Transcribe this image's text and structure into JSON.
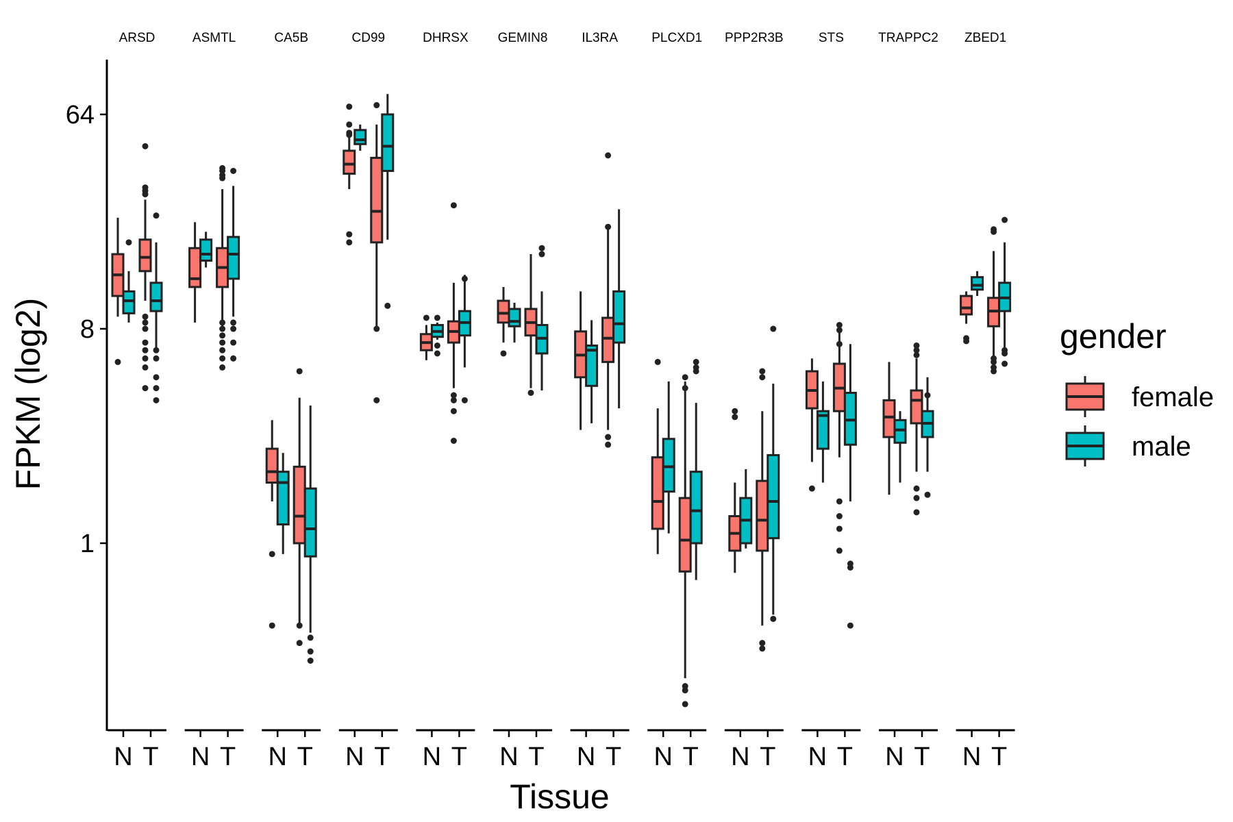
{
  "chart_data": {
    "type": "box",
    "facets": [
      "ARSD",
      "ASMTL",
      "CA5B",
      "CD99",
      "DHRSX",
      "GEMIN8",
      "IL3RA",
      "PLCXD1",
      "PPP2R3B",
      "STS",
      "TRAPPC2",
      "ZBED1"
    ],
    "x_categories": [
      "N",
      "T"
    ],
    "xlabel": "Tissue",
    "ylabel": "FPKM (log2)",
    "y_scale": "log2",
    "y_ticks": [
      1,
      8,
      64
    ],
    "y_tick_labels": [
      "1",
      "8",
      "64"
    ],
    "ylim": [
      0.12,
      100
    ],
    "legend": {
      "title": "gender",
      "position": "right",
      "entries": [
        {
          "name": "female",
          "color": "#F8766D"
        },
        {
          "name": "male",
          "color": "#00BFC4"
        }
      ]
    },
    "series": [
      {
        "name": "female",
        "color": "#F8766D"
      },
      {
        "name": "male",
        "color": "#00BFC4"
      }
    ],
    "boxes": [
      {
        "gene": "ARSD",
        "tissue": "N",
        "gender": "female",
        "min": 9.0,
        "q1": 11.0,
        "median": 13.5,
        "q3": 16.5,
        "max": 23.5,
        "outliers": [
          5.8
        ]
      },
      {
        "gene": "ARSD",
        "tissue": "N",
        "gender": "male",
        "min": 8.5,
        "q1": 9.3,
        "median": 10.5,
        "q3": 11.5,
        "max": 14.0,
        "outliers": [
          18.5
        ]
      },
      {
        "gene": "ARSD",
        "tissue": "T",
        "gender": "female",
        "min": 10.5,
        "q1": 14.0,
        "median": 16.0,
        "q3": 19.0,
        "max": 28.0,
        "outliers": [
          47.0,
          31.5,
          30.5,
          29.5,
          9.0,
          8.5,
          8.0,
          7.0,
          6.5,
          6.0,
          5.5,
          4.5
        ]
      },
      {
        "gene": "ARSD",
        "tissue": "T",
        "gender": "male",
        "min": 6.5,
        "q1": 9.5,
        "median": 10.5,
        "q3": 12.5,
        "max": 18.5,
        "outliers": [
          24.0,
          6.5,
          6.0,
          5.0,
          4.5,
          4.0
        ]
      },
      {
        "gene": "ASMTL",
        "tissue": "N",
        "gender": "female",
        "min": 8.5,
        "q1": 12.0,
        "median": 13.0,
        "q3": 17.5,
        "max": 22.5,
        "outliers": []
      },
      {
        "gene": "ASMTL",
        "tissue": "N",
        "gender": "male",
        "min": 14.5,
        "q1": 15.5,
        "median": 16.5,
        "q3": 19.0,
        "max": 20.5,
        "outliers": []
      },
      {
        "gene": "ASMTL",
        "tissue": "T",
        "gender": "female",
        "min": 8.0,
        "q1": 12.0,
        "median": 14.5,
        "q3": 17.5,
        "max": 31.0,
        "outliers": [
          38.0,
          37.0,
          35.5,
          34.5,
          8.5,
          8.0,
          7.5,
          7.0,
          6.5,
          6.0,
          5.5
        ]
      },
      {
        "gene": "ASMTL",
        "tissue": "T",
        "gender": "male",
        "min": 9.0,
        "q1": 13.0,
        "median": 16.5,
        "q3": 19.5,
        "max": 32.0,
        "outliers": [
          37.0,
          8.5,
          8.0,
          7.0,
          6.0
        ]
      },
      {
        "gene": "CA5B",
        "tissue": "N",
        "gender": "female",
        "min": 1.5,
        "q1": 1.8,
        "median": 2.0,
        "q3": 2.5,
        "max": 3.3,
        "outliers": [
          0.9,
          0.45
        ]
      },
      {
        "gene": "CA5B",
        "tissue": "N",
        "gender": "male",
        "min": 0.9,
        "q1": 1.2,
        "median": 1.8,
        "q3": 2.0,
        "max": 2.4,
        "outliers": []
      },
      {
        "gene": "CA5B",
        "tissue": "T",
        "gender": "female",
        "min": 0.45,
        "q1": 1.0,
        "median": 1.3,
        "q3": 2.1,
        "max": 4.1,
        "outliers": [
          5.3,
          0.45,
          0.38
        ]
      },
      {
        "gene": "CA5B",
        "tissue": "T",
        "gender": "male",
        "min": 0.42,
        "q1": 0.88,
        "median": 1.15,
        "q3": 1.7,
        "max": 3.8,
        "outliers": [
          0.4,
          0.35,
          0.32
        ]
      },
      {
        "gene": "CD99",
        "tissue": "N",
        "gender": "female",
        "min": 31.0,
        "q1": 36.0,
        "median": 39.5,
        "q3": 45.0,
        "max": 52.0,
        "outliers": [
          69.0,
          58.0,
          53.5,
          52.5,
          20.0,
          18.5
        ]
      },
      {
        "gene": "CD99",
        "tissue": "N",
        "gender": "male",
        "min": 45.0,
        "q1": 48.0,
        "median": 50.0,
        "q3": 55.0,
        "max": 58.0,
        "outliers": []
      },
      {
        "gene": "CD99",
        "tissue": "T",
        "gender": "female",
        "min": 8.0,
        "q1": 18.5,
        "median": 25.0,
        "q3": 42.0,
        "max": 58.0,
        "outliers": [
          70.0,
          8.0,
          4.0
        ]
      },
      {
        "gene": "CD99",
        "tissue": "T",
        "gender": "male",
        "min": 19.0,
        "q1": 37.0,
        "median": 47.0,
        "q3": 64.0,
        "max": 78.0,
        "outliers": [
          10.0
        ]
      },
      {
        "gene": "DHRSX",
        "tissue": "N",
        "gender": "female",
        "min": 5.9,
        "q1": 6.5,
        "median": 7.0,
        "q3": 7.6,
        "max": 8.3,
        "outliers": [
          8.9
        ]
      },
      {
        "gene": "DHRSX",
        "tissue": "N",
        "gender": "male",
        "min": 7.2,
        "q1": 7.4,
        "median": 7.8,
        "q3": 8.3,
        "max": 8.5,
        "outliers": [
          8.9,
          6.8,
          6.3
        ]
      },
      {
        "gene": "DHRSX",
        "tissue": "T",
        "gender": "female",
        "min": 4.5,
        "q1": 7.0,
        "median": 7.8,
        "q3": 8.6,
        "max": 12.5,
        "outliers": [
          26.5,
          4.2,
          4.0,
          3.6,
          2.7
        ]
      },
      {
        "gene": "DHRSX",
        "tissue": "T",
        "gender": "male",
        "min": 5.5,
        "q1": 7.5,
        "median": 8.5,
        "q3": 9.5,
        "max": 13.5,
        "outliers": [
          13.0,
          4.0
        ]
      },
      {
        "gene": "GEMIN8",
        "tissue": "N",
        "gender": "female",
        "min": 7.0,
        "q1": 8.5,
        "median": 9.3,
        "q3": 10.5,
        "max": 12.0,
        "outliers": [
          6.3
        ]
      },
      {
        "gene": "GEMIN8",
        "tissue": "N",
        "gender": "male",
        "min": 7.0,
        "q1": 8.2,
        "median": 8.6,
        "q3": 9.7,
        "max": 10.3,
        "outliers": []
      },
      {
        "gene": "GEMIN8",
        "tissue": "T",
        "gender": "female",
        "min": 4.5,
        "q1": 7.5,
        "median": 8.5,
        "q3": 9.7,
        "max": 16.5,
        "outliers": [
          4.3
        ]
      },
      {
        "gene": "GEMIN8",
        "tissue": "T",
        "gender": "male",
        "min": 4.4,
        "q1": 6.3,
        "median": 7.3,
        "q3": 8.3,
        "max": 11.5,
        "outliers": [
          17.5,
          16.5
        ]
      },
      {
        "gene": "IL3RA",
        "tissue": "N",
        "gender": "female",
        "min": 3.0,
        "q1": 5.0,
        "median": 6.2,
        "q3": 7.8,
        "max": 11.5,
        "outliers": []
      },
      {
        "gene": "IL3RA",
        "tissue": "N",
        "gender": "male",
        "min": 3.2,
        "q1": 4.6,
        "median": 6.5,
        "q3": 6.8,
        "max": 8.7,
        "outliers": []
      },
      {
        "gene": "IL3RA",
        "tissue": "T",
        "gender": "female",
        "min": 3.0,
        "q1": 5.8,
        "median": 7.3,
        "q3": 8.9,
        "max": 21.0,
        "outliers": [
          43.0,
          21.5,
          2.8,
          2.6
        ]
      },
      {
        "gene": "IL3RA",
        "tissue": "T",
        "gender": "male",
        "min": 3.7,
        "q1": 7.0,
        "median": 8.4,
        "q3": 11.5,
        "max": 25.5,
        "outliers": []
      },
      {
        "gene": "PLCXD1",
        "tissue": "N",
        "gender": "female",
        "min": 0.9,
        "q1": 1.15,
        "median": 1.5,
        "q3": 2.3,
        "max": 3.7,
        "outliers": [
          5.8
        ]
      },
      {
        "gene": "PLCXD1",
        "tissue": "N",
        "gender": "male",
        "min": 1.1,
        "q1": 1.65,
        "median": 2.1,
        "q3": 2.75,
        "max": 4.8,
        "outliers": []
      },
      {
        "gene": "PLCXD1",
        "tissue": "T",
        "gender": "female",
        "min": 0.27,
        "q1": 0.76,
        "median": 1.03,
        "q3": 1.55,
        "max": 4.8,
        "outliers": [
          5.0,
          4.5,
          0.25,
          0.24,
          0.21
        ]
      },
      {
        "gene": "PLCXD1",
        "tissue": "T",
        "gender": "male",
        "min": 0.7,
        "q1": 1.0,
        "median": 1.37,
        "q3": 2.0,
        "max": 3.9,
        "outliers": [
          5.8,
          5.5,
          5.3
        ]
      },
      {
        "gene": "PPP2R3B",
        "tissue": "N",
        "gender": "female",
        "min": 0.75,
        "q1": 0.93,
        "median": 1.1,
        "q3": 1.3,
        "max": 1.8,
        "outliers": [
          3.6,
          3.4
        ]
      },
      {
        "gene": "PPP2R3B",
        "tissue": "N",
        "gender": "male",
        "min": 0.95,
        "q1": 1.0,
        "median": 1.25,
        "q3": 1.55,
        "max": 2.05,
        "outliers": []
      },
      {
        "gene": "PPP2R3B",
        "tissue": "T",
        "gender": "female",
        "min": 0.45,
        "q1": 0.93,
        "median": 1.25,
        "q3": 1.83,
        "max": 3.6,
        "outliers": [
          5.3,
          5.0,
          0.38,
          0.36
        ]
      },
      {
        "gene": "PPP2R3B",
        "tissue": "T",
        "gender": "male",
        "min": 0.5,
        "q1": 1.05,
        "median": 1.5,
        "q3": 2.35,
        "max": 4.7,
        "outliers": [
          8.0,
          0.48
        ]
      },
      {
        "gene": "STS",
        "tissue": "N",
        "gender": "female",
        "min": 2.2,
        "q1": 3.7,
        "median": 4.4,
        "q3": 5.3,
        "max": 6.0,
        "outliers": [
          1.7
        ]
      },
      {
        "gene": "STS",
        "tissue": "N",
        "gender": "male",
        "min": 1.8,
        "q1": 2.5,
        "median": 3.45,
        "q3": 3.6,
        "max": 4.8,
        "outliers": []
      },
      {
        "gene": "STS",
        "tissue": "T",
        "gender": "female",
        "min": 2.3,
        "q1": 3.6,
        "median": 4.5,
        "q3": 5.7,
        "max": 8.5,
        "outliers": [
          8.3,
          7.9,
          6.9,
          1.5,
          1.3,
          1.15,
          0.93
        ]
      },
      {
        "gene": "STS",
        "tissue": "T",
        "gender": "male",
        "min": 1.5,
        "q1": 2.6,
        "median": 3.3,
        "q3": 4.3,
        "max": 6.9,
        "outliers": [
          0.82,
          0.79,
          0.45
        ]
      },
      {
        "gene": "TRAPPC2",
        "tissue": "N",
        "gender": "female",
        "min": 1.6,
        "q1": 2.8,
        "median": 3.4,
        "q3": 4.0,
        "max": 5.8,
        "outliers": []
      },
      {
        "gene": "TRAPPC2",
        "tissue": "N",
        "gender": "male",
        "min": 1.8,
        "q1": 2.65,
        "median": 3.0,
        "q3": 3.3,
        "max": 3.6,
        "outliers": []
      },
      {
        "gene": "TRAPPC2",
        "tissue": "T",
        "gender": "female",
        "min": 2.0,
        "q1": 3.2,
        "median": 4.0,
        "q3": 4.4,
        "max": 6.0,
        "outliers": [
          6.8,
          6.5,
          6.2,
          1.7,
          1.55,
          1.35
        ]
      },
      {
        "gene": "TRAPPC2",
        "tissue": "T",
        "gender": "male",
        "min": 2.0,
        "q1": 2.8,
        "median": 3.2,
        "q3": 3.6,
        "max": 5.0,
        "outliers": [
          4.2,
          1.6
        ]
      },
      {
        "gene": "ZBED1",
        "tissue": "N",
        "gender": "female",
        "min": 8.4,
        "q1": 9.2,
        "median": 9.8,
        "q3": 11.0,
        "max": 11.5,
        "outliers": [
          7.3,
          7.1
        ]
      },
      {
        "gene": "ZBED1",
        "tissue": "N",
        "gender": "male",
        "min": 11.0,
        "q1": 11.7,
        "median": 12.2,
        "q3": 13.2,
        "max": 14.0,
        "outliers": []
      },
      {
        "gene": "ZBED1",
        "tissue": "T",
        "gender": "female",
        "min": 6.0,
        "q1": 8.2,
        "median": 9.5,
        "q3": 10.8,
        "max": 17.0,
        "outliers": [
          21.0,
          20.5,
          6.0,
          5.8,
          5.5,
          5.3
        ]
      },
      {
        "gene": "ZBED1",
        "tissue": "T",
        "gender": "male",
        "min": 6.5,
        "q1": 9.5,
        "median": 10.8,
        "q3": 12.5,
        "max": 18.5,
        "outliers": [
          23.0,
          6.5,
          6.3,
          5.7
        ]
      }
    ]
  }
}
